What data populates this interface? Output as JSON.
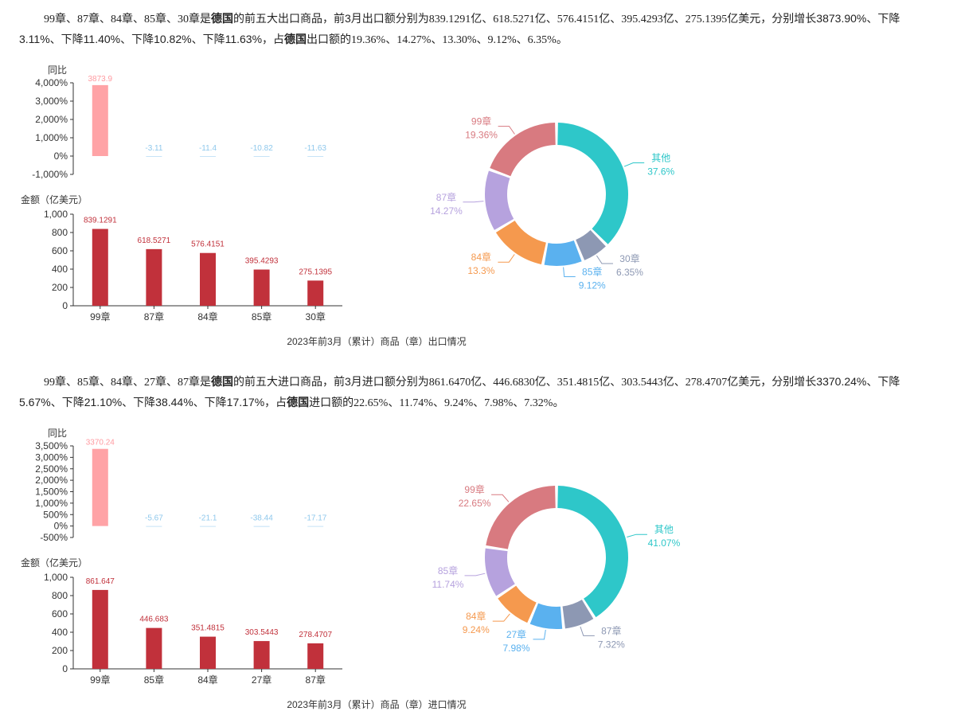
{
  "sections": [
    {
      "paragraph": {
        "codes": "99章、87章、84章、85章、30章",
        "is": "是",
        "country": "德国",
        "mid1": "的前五大出口商品，前3月出口额分别为",
        "amounts": "839.1291亿、618.5271亿、576.4151亿、395.4293亿、275.1395亿美元",
        "mid2": "，分别增长3873.90%、下降3.11%、下降11.40%、下降10.82%、下降11.63%，占",
        "country2": "德国",
        "mid3": "出口额的",
        "shares": "19.36%、14.27%、13.30%、9.12%、6.35%",
        "end": "。"
      },
      "caption": "2023年前3月（累计）商品（章）出口情况",
      "chart_data": {
        "type": "bar",
        "categories": [
          "99章",
          "87章",
          "84章",
          "85章",
          "30章"
        ],
        "yoy": {
          "ylabel": "同比",
          "values": [
            3873.9,
            -3.11,
            -11.4,
            -10.82,
            -11.63
          ],
          "labels": [
            "3873.9",
            "-3.11",
            "-11.4",
            "-10.82",
            "-11.63"
          ],
          "ylim": [
            -1000,
            4000
          ],
          "ticks": [
            -1000,
            0,
            1000,
            2000,
            3000,
            4000
          ],
          "tick_labels": [
            "-1,000%",
            "0%",
            "1,000%",
            "2,000%",
            "3,000%",
            "4,000%"
          ]
        },
        "amount": {
          "ylabel": "金额（亿美元）",
          "values": [
            839.1291,
            618.5271,
            576.4151,
            395.4293,
            275.1395
          ],
          "labels": [
            "839.1291",
            "618.5271",
            "576.4151",
            "395.4293",
            "275.1395"
          ],
          "ylim": [
            0,
            1000
          ],
          "ticks": [
            0,
            200,
            400,
            600,
            800,
            1000
          ],
          "tick_labels": [
            "0",
            "200",
            "400",
            "600",
            "800",
            "1,000"
          ]
        },
        "donut": {
          "type": "pie",
          "slices": [
            {
              "name": "其他",
              "value": 37.6,
              "label": "37.6%",
              "color": "#2ec7c9"
            },
            {
              "name": "30章",
              "value": 6.35,
              "label": "6.35%",
              "color": "#8d98b3"
            },
            {
              "name": "85章",
              "value": 9.12,
              "label": "9.12%",
              "color": "#5ab1ef"
            },
            {
              "name": "84章",
              "value": 13.3,
              "label": "13.3%",
              "color": "#f5994e"
            },
            {
              "name": "87章",
              "value": 14.27,
              "label": "14.27%",
              "color": "#b6a2de"
            },
            {
              "name": "99章",
              "value": 19.36,
              "label": "19.36%",
              "color": "#d87a80"
            }
          ]
        }
      }
    },
    {
      "paragraph": {
        "codes": "99章、85章、84章、27章、87章",
        "is": "是",
        "country": "德国",
        "mid1": "的前五大进口商品，前3月进口额分别为",
        "amounts": "861.6470亿、446.6830亿、351.4815亿、303.5443亿、278.4707亿美元",
        "mid2": "，分别增长3370.24%、下降5.67%、下降21.10%、下降38.44%、下降17.17%，占",
        "country2": "德国",
        "mid3": "进口额的",
        "shares": "22.65%、11.74%、9.24%、7.98%、7.32%",
        "end": "。"
      },
      "caption": "2023年前3月（累计）商品（章）进口情况",
      "chart_data": {
        "type": "bar",
        "categories": [
          "99章",
          "85章",
          "84章",
          "27章",
          "87章"
        ],
        "yoy": {
          "ylabel": "同比",
          "values": [
            3370.24,
            -5.67,
            -21.1,
            -38.44,
            -17.17
          ],
          "labels": [
            "3370.24",
            "-5.67",
            "-21.1",
            "-38.44",
            "-17.17"
          ],
          "ylim": [
            -500,
            3500
          ],
          "ticks": [
            -500,
            0,
            500,
            1000,
            1500,
            2000,
            2500,
            3000,
            3500
          ],
          "tick_labels": [
            "-500%",
            "0%",
            "500%",
            "1,000%",
            "1,500%",
            "2,000%",
            "2,500%",
            "3,000%",
            "3,500%"
          ]
        },
        "amount": {
          "ylabel": "金额（亿美元）",
          "values": [
            861.647,
            446.683,
            351.4815,
            303.5443,
            278.4707
          ],
          "labels": [
            "861.647",
            "446.683",
            "351.4815",
            "303.5443",
            "278.4707"
          ],
          "ylim": [
            0,
            1000
          ],
          "ticks": [
            0,
            200,
            400,
            600,
            800,
            1000
          ],
          "tick_labels": [
            "0",
            "200",
            "400",
            "600",
            "800",
            "1,000"
          ]
        },
        "donut": {
          "type": "pie",
          "slices": [
            {
              "name": "其他",
              "value": 41.07,
              "label": "41.07%",
              "color": "#2ec7c9"
            },
            {
              "name": "87章",
              "value": 7.32,
              "label": "7.32%",
              "color": "#8d98b3"
            },
            {
              "name": "27章",
              "value": 7.98,
              "label": "7.98%",
              "color": "#5ab1ef"
            },
            {
              "name": "84章",
              "value": 9.24,
              "label": "9.24%",
              "color": "#f5994e"
            },
            {
              "name": "85章",
              "value": 11.74,
              "label": "11.74%",
              "color": "#b6a2de"
            },
            {
              "name": "99章",
              "value": 22.65,
              "label": "22.65%",
              "color": "#d87a80"
            }
          ]
        }
      }
    }
  ],
  "colors": {
    "yoy_bar": "#ffa3a6",
    "yoy_label_pos": "#ff9aa0",
    "yoy_label_neg": "#8fc8ec",
    "yoy_neg_bar": "#c7e4f7",
    "amount_bar": "#c1313b",
    "amount_label": "#c1313b"
  }
}
